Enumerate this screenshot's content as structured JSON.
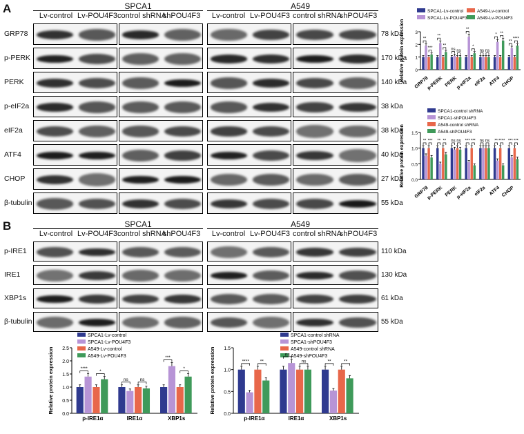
{
  "figure": {
    "panel_a": "A",
    "panel_b": "B",
    "cell_lines": [
      "SPCA1",
      "A549"
    ],
    "treatments": [
      "Lv-control",
      "Lv-POU4F3",
      "control shRNA",
      "shPOU4F3"
    ],
    "blot_rows_a": [
      {
        "label": "GRP78",
        "kda": "78 kDa"
      },
      {
        "label": "p-PERK",
        "kda": "170 kDa"
      },
      {
        "label": "PERK",
        "kda": "140 kDa"
      },
      {
        "label": "p-eIF2a",
        "kda": "38 kDa"
      },
      {
        "label": "eIF2a",
        "kda": "38 kDa"
      },
      {
        "label": "ATF4",
        "kda": "40 kDa"
      },
      {
        "label": "CHOP",
        "kda": "27 kDa"
      },
      {
        "label": "β-tubulin",
        "kda": "55 kDa"
      }
    ],
    "blot_rows_b": [
      {
        "label": "p-IRE1",
        "kda": "110 kDa"
      },
      {
        "label": "IRE1",
        "kda": "130 kDa"
      },
      {
        "label": "XBP1s",
        "kda": "61 kDa"
      },
      {
        "label": "β-tubulin",
        "kda": "55 kDa"
      }
    ]
  },
  "colors": {
    "spca1_ctrl": "#2f3a8f",
    "spca1_treat": "#b794d6",
    "a549_ctrl": "#e8674a",
    "a549_treat": "#3f9a5a"
  },
  "chart_data": [
    {
      "id": "A_top",
      "type": "bar",
      "title": "",
      "ylabel": "Relative protein expression",
      "ylim": [
        0,
        3
      ],
      "yticks": [
        "0",
        "1",
        "2",
        "3"
      ],
      "legend": [
        "SPCA1-Lv-control",
        "A549-Lv-control",
        "SPCA1-Lv-POU4F3",
        "A549-Lv-POU4F3"
      ],
      "categories": [
        "GRP78",
        "p-PERK",
        "PERK",
        "p-eIF2a",
        "eIF2a",
        "ATF4",
        "CHOP"
      ],
      "series": [
        {
          "name": "SPCA1-Lv-control",
          "values": [
            1,
            1,
            1,
            1,
            1,
            1,
            1
          ]
        },
        {
          "name": "SPCA1-Lv-POU4F3",
          "values": [
            1.9,
            2.1,
            1.1,
            2.6,
            1.0,
            2.2,
            1.7
          ]
        },
        {
          "name": "A549-Lv-control",
          "values": [
            1,
            1,
            1,
            1,
            1,
            1,
            1
          ]
        },
        {
          "name": "A549-Lv-POU4F3",
          "values": [
            1.2,
            1.4,
            1.0,
            1.3,
            1.0,
            2.3,
            1.9
          ]
        }
      ],
      "significance": [
        "**",
        "***",
        "**",
        "**",
        "ns",
        "ns",
        "**",
        "*",
        "ns",
        "ns",
        "*",
        "**",
        "**",
        "****"
      ]
    },
    {
      "id": "A_bottom",
      "type": "bar",
      "title": "",
      "ylabel": "Relative protein expression",
      "ylim": [
        0,
        1.5
      ],
      "yticks": [
        "0.0",
        "0.5",
        "1.0",
        "1.5"
      ],
      "legend": [
        "SPCA1-control shRNA",
        "SPCA1-shPOU4F3",
        "A549-control shRNA",
        "A549-shPOU4F3"
      ],
      "categories": [
        "GRP78",
        "p-PERK",
        "PERK",
        "p-eIF2a",
        "eIF2a",
        "ATF4",
        "CHOP"
      ],
      "series": [
        {
          "name": "SPCA1-control shRNA",
          "values": [
            1,
            1,
            1,
            1,
            1,
            1,
            1
          ]
        },
        {
          "name": "SPCA1-shPOU4F3",
          "values": [
            0.75,
            0.5,
            0.95,
            0.55,
            1.0,
            0.6,
            0.7
          ]
        },
        {
          "name": "A549-control shRNA",
          "values": [
            1,
            1,
            1,
            1,
            1,
            1,
            1
          ]
        },
        {
          "name": "A549-shPOU4F3",
          "values": [
            0.7,
            0.8,
            0.95,
            0.45,
            1.0,
            0.45,
            0.65
          ]
        }
      ],
      "significance": [
        "**",
        "***",
        "**",
        "**",
        "ns",
        "ns",
        "***",
        "***",
        "ns",
        "ns",
        "**",
        "****",
        "***",
        "***"
      ]
    },
    {
      "id": "B_left",
      "type": "bar",
      "title": "",
      "ylabel": "Relative protein expression",
      "ylim": [
        0,
        2.5
      ],
      "yticks": [
        "0.0",
        "0.5",
        "1.0",
        "1.5",
        "2.0",
        "2.5"
      ],
      "legend": [
        "SPCA1-Lv-control",
        "SPCA1-Lv-POU4F3",
        "A549-Lv-control",
        "A549-Lv-POU4F3"
      ],
      "categories": [
        "p-IRE1α",
        "IRE1α",
        "XBP1s"
      ],
      "series": [
        {
          "name": "SPCA1-Lv-control",
          "values": [
            1.0,
            1.0,
            1.0
          ]
        },
        {
          "name": "SPCA1-Lv-POU4F3",
          "values": [
            1.4,
            0.85,
            1.8
          ]
        },
        {
          "name": "A549-Lv-control",
          "values": [
            1.0,
            1.0,
            1.0
          ]
        },
        {
          "name": "A549-Lv-POU4F3",
          "values": [
            1.3,
            0.95,
            1.4
          ]
        }
      ],
      "significance": [
        "****",
        "*",
        "ns",
        "ns",
        "***",
        "*"
      ]
    },
    {
      "id": "B_right",
      "type": "bar",
      "title": "",
      "ylabel": "Relative protein expression",
      "ylim": [
        0,
        1.5
      ],
      "yticks": [
        "0.0",
        "0.5",
        "1.0",
        "1.5"
      ],
      "legend": [
        "SPCA1-control shRNA",
        "SPCA1-shPOU4F3",
        "A549-control shRNA",
        "A549-shPOU4F3"
      ],
      "categories": [
        "p-IRE1α",
        "IRE1α",
        "XBP1s"
      ],
      "series": [
        {
          "name": "SPCA1-control shRNA",
          "values": [
            1.0,
            1.0,
            1.0
          ]
        },
        {
          "name": "SPCA1-shPOU4F3",
          "values": [
            0.48,
            1.15,
            0.52
          ]
        },
        {
          "name": "A549-control shRNA",
          "values": [
            1.0,
            1.0,
            1.0
          ]
        },
        {
          "name": "A549-shPOU4F3",
          "values": [
            0.75,
            1.0,
            0.8
          ]
        }
      ],
      "significance": [
        "****",
        "**",
        "ns",
        "ns",
        "**",
        "**"
      ]
    }
  ]
}
